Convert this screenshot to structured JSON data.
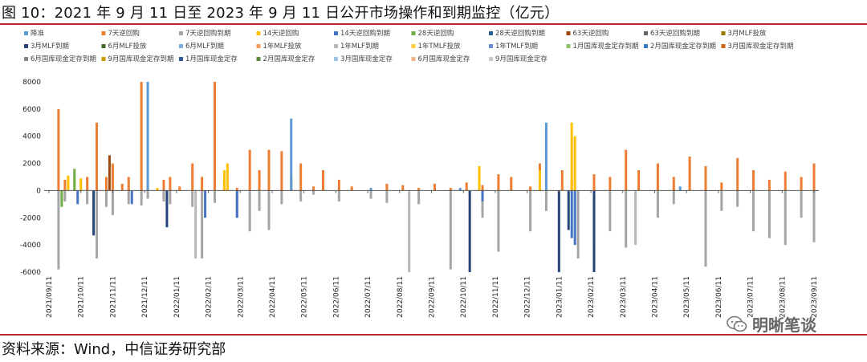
{
  "title": "图 10：2021 年 9 月 11 日至 2023 年 9 月 11 日公开市场操作和到期监控（亿元）",
  "source": "资料来源：Wind，中信证券研究部",
  "watermark": "明晰笔谈",
  "watermark_icon": "wechat-icon",
  "colors": {
    "accent": "#c0242c"
  },
  "chart_data": {
    "type": "bar",
    "title": "2021 年 9 月 11 日至 2023 年 9 月 11 日公开市场操作和到期监控（亿元）",
    "xlabel": "",
    "ylabel": "亿元",
    "ylim": [
      -6000,
      8000
    ],
    "yticks": [
      8000,
      6000,
      4000,
      2000,
      0,
      -2000,
      -4000,
      -6000
    ],
    "legend": [
      {
        "name": "降准",
        "color": "#5b9bd5"
      },
      {
        "name": "7天逆回购",
        "color": "#ed7d31"
      },
      {
        "name": "7天逆回购到期",
        "color": "#a5a5a5"
      },
      {
        "name": "14天逆回购",
        "color": "#ffc000"
      },
      {
        "name": "14天逆回购到期",
        "color": "#4472c4"
      },
      {
        "name": "28天逆回购",
        "color": "#70ad47"
      },
      {
        "name": "28天逆回购到期",
        "color": "#255e91"
      },
      {
        "name": "63天逆回购",
        "color": "#9e480e"
      },
      {
        "name": "63天逆回购到期",
        "color": "#636363"
      },
      {
        "name": "3月MLF投放",
        "color": "#997300"
      },
      {
        "name": "3月MLF到期",
        "color": "#264478"
      },
      {
        "name": "6月MLF投放",
        "color": "#43682b"
      },
      {
        "name": "6月MLF到期",
        "color": "#7cafdd"
      },
      {
        "name": "1年MLF投放",
        "color": "#f1975a"
      },
      {
        "name": "1年MLF到期",
        "color": "#b7b7b7"
      },
      {
        "name": "1年TMLF投放",
        "color": "#ffcd33"
      },
      {
        "name": "1年TMLF到期",
        "color": "#698ed0"
      },
      {
        "name": "1月国库现金定存到期",
        "color": "#8cc168"
      },
      {
        "name": "2月国库现金定存到期",
        "color": "#327dc2"
      },
      {
        "name": "3月国库现金定存到期",
        "color": "#d26012"
      },
      {
        "name": "6月国库现金定存到期",
        "color": "#848484"
      },
      {
        "name": "9月国库现金定存到期",
        "color": "#cc9a00"
      },
      {
        "name": "1月国库现金定存",
        "color": "#335aa1"
      },
      {
        "name": "2月国库现金定存",
        "color": "#5a8a39"
      },
      {
        "name": "3月国库现金定存",
        "color": "#9dc3e6"
      },
      {
        "name": "6月国库现金定存",
        "color": "#f4b183"
      },
      {
        "name": "9月国库现金定存",
        "color": "#c9c9c9"
      }
    ],
    "categories": [
      "2021/09/11",
      "2021/10/11",
      "2021/11/11",
      "2021/12/11",
      "2022/01/11",
      "2022/02/11",
      "2022/03/11",
      "2022/04/11",
      "2022/05/11",
      "2022/06/11",
      "2022/07/11",
      "2022/08/11",
      "2022/09/11",
      "2022/10/11",
      "2022/11/11",
      "2022/12/11",
      "2023/01/11",
      "2023/02/11",
      "2023/03/11",
      "2023/04/11",
      "2023/05/11",
      "2023/06/11",
      "2023/07/11",
      "2023/08/11",
      "2023/09/11"
    ],
    "series": [
      {
        "name": "7天逆回购",
        "points": [
          [
            0.3,
            6000
          ],
          [
            0.5,
            800
          ],
          [
            1.2,
            1000
          ],
          [
            1.5,
            5000
          ],
          [
            1.8,
            1000
          ],
          [
            2.0,
            2000
          ],
          [
            2.3,
            500
          ],
          [
            2.5,
            1000
          ],
          [
            2.9,
            8000
          ],
          [
            3.1,
            500
          ],
          [
            3.6,
            800
          ],
          [
            3.8,
            1000
          ],
          [
            4.1,
            300
          ],
          [
            4.5,
            2000
          ],
          [
            4.8,
            1000
          ],
          [
            5.2,
            8000
          ],
          [
            5.5,
            800
          ],
          [
            5.9,
            200
          ],
          [
            6.3,
            3000
          ],
          [
            6.6,
            1500
          ],
          [
            6.9,
            3000
          ],
          [
            7.3,
            2900
          ],
          [
            7.6,
            1000
          ],
          [
            7.9,
            2000
          ],
          [
            8.3,
            300
          ],
          [
            8.6,
            1500
          ],
          [
            9.1,
            800
          ],
          [
            9.5,
            300
          ],
          [
            10.1,
            200
          ],
          [
            10.6,
            500
          ],
          [
            11.1,
            400
          ],
          [
            11.6,
            200
          ],
          [
            12.1,
            500
          ],
          [
            12.6,
            200
          ],
          [
            13.1,
            600
          ],
          [
            13.6,
            400
          ],
          [
            14.1,
            1200
          ],
          [
            14.5,
            1000
          ],
          [
            15.1,
            300
          ],
          [
            15.4,
            2000
          ],
          [
            16.1,
            1500
          ],
          [
            16.4,
            800
          ],
          [
            17.1,
            1200
          ],
          [
            17.6,
            1000
          ],
          [
            18.1,
            3000
          ],
          [
            18.5,
            1500
          ],
          [
            19.1,
            2000
          ],
          [
            19.6,
            1000
          ],
          [
            20.1,
            2500
          ],
          [
            20.6,
            1800
          ],
          [
            21.1,
            600
          ],
          [
            21.6,
            2400
          ],
          [
            22.1,
            1500
          ],
          [
            22.6,
            800
          ],
          [
            23.1,
            1400
          ],
          [
            23.6,
            1000
          ],
          [
            24.0,
            2000
          ]
        ]
      },
      {
        "name": "7天逆回购到期",
        "points": [
          [
            0.3,
            -5800
          ],
          [
            0.5,
            -800
          ],
          [
            1.2,
            -1000
          ],
          [
            1.5,
            -5000
          ],
          [
            1.8,
            -1200
          ],
          [
            2.0,
            -1800
          ],
          [
            2.5,
            -1000
          ],
          [
            2.9,
            -1100
          ],
          [
            3.1,
            -600
          ],
          [
            3.6,
            -800
          ],
          [
            3.8,
            -1000
          ],
          [
            4.5,
            -1200
          ],
          [
            4.8,
            -5000
          ],
          [
            5.2,
            -900
          ],
          [
            5.9,
            -2000
          ],
          [
            6.3,
            -3000
          ],
          [
            6.6,
            -1500
          ],
          [
            6.9,
            -2900
          ],
          [
            7.3,
            -1000
          ],
          [
            7.9,
            -800
          ],
          [
            8.3,
            -300
          ],
          [
            9.1,
            -800
          ],
          [
            10.1,
            -600
          ],
          [
            10.6,
            -900
          ],
          [
            11.6,
            -1000
          ],
          [
            12.6,
            -5800
          ],
          [
            13.6,
            -2000
          ],
          [
            14.1,
            -4500
          ],
          [
            15.1,
            -3000
          ],
          [
            15.6,
            -1500
          ],
          [
            16.6,
            -5000
          ],
          [
            17.1,
            -4000
          ],
          [
            17.6,
            -3000
          ],
          [
            18.1,
            -4200
          ],
          [
            19.1,
            -2000
          ],
          [
            19.6,
            -1000
          ],
          [
            20.6,
            -5600
          ],
          [
            21.1,
            -1500
          ],
          [
            21.6,
            -1200
          ],
          [
            22.1,
            -3000
          ],
          [
            22.6,
            -3500
          ],
          [
            23.1,
            -4000
          ],
          [
            23.6,
            -2000
          ],
          [
            24.0,
            -3800
          ]
        ]
      },
      {
        "name": "14天逆回购",
        "points": [
          [
            0.6,
            1100
          ],
          [
            0.8,
            1000
          ],
          [
            1.0,
            900
          ],
          [
            3.4,
            200
          ],
          [
            5.5,
            1500
          ],
          [
            5.6,
            2000
          ],
          [
            13.5,
            1800
          ],
          [
            15.4,
            1500
          ],
          [
            16.4,
            5000
          ],
          [
            16.5,
            4000
          ]
        ]
      },
      {
        "name": "14天逆回购到期",
        "points": [
          [
            0.9,
            -1000
          ],
          [
            2.6,
            -1000
          ],
          [
            4.9,
            -2000
          ],
          [
            5.9,
            -2000
          ],
          [
            13.6,
            -800
          ],
          [
            16.4,
            -3500
          ],
          [
            16.5,
            -4000
          ]
        ]
      },
      {
        "name": "降准",
        "points": [
          [
            3.1,
            8000
          ],
          [
            7.6,
            5300
          ],
          [
            10.1,
            200
          ],
          [
            12.9,
            200
          ],
          [
            15.6,
            5000
          ],
          [
            19.8,
            300
          ]
        ]
      },
      {
        "name": "28天逆回购",
        "points": [
          [
            0.8,
            1600
          ],
          [
            0.4,
            -1200
          ]
        ]
      },
      {
        "name": "63天逆回购",
        "points": [
          [
            1.9,
            2600
          ]
        ]
      },
      {
        "name": "3月MLF到期",
        "points": [
          [
            1.4,
            -3300
          ],
          [
            3.7,
            -2700
          ],
          [
            13.2,
            -6000
          ],
          [
            16.0,
            -6000
          ],
          [
            16.3,
            -2900
          ],
          [
            17.1,
            -6000
          ]
        ]
      },
      {
        "name": "1年MLF到期",
        "points": [
          [
            4.6,
            -5000
          ],
          [
            11.3,
            -6000
          ],
          [
            18.4,
            -4000
          ]
        ]
      }
    ]
  }
}
